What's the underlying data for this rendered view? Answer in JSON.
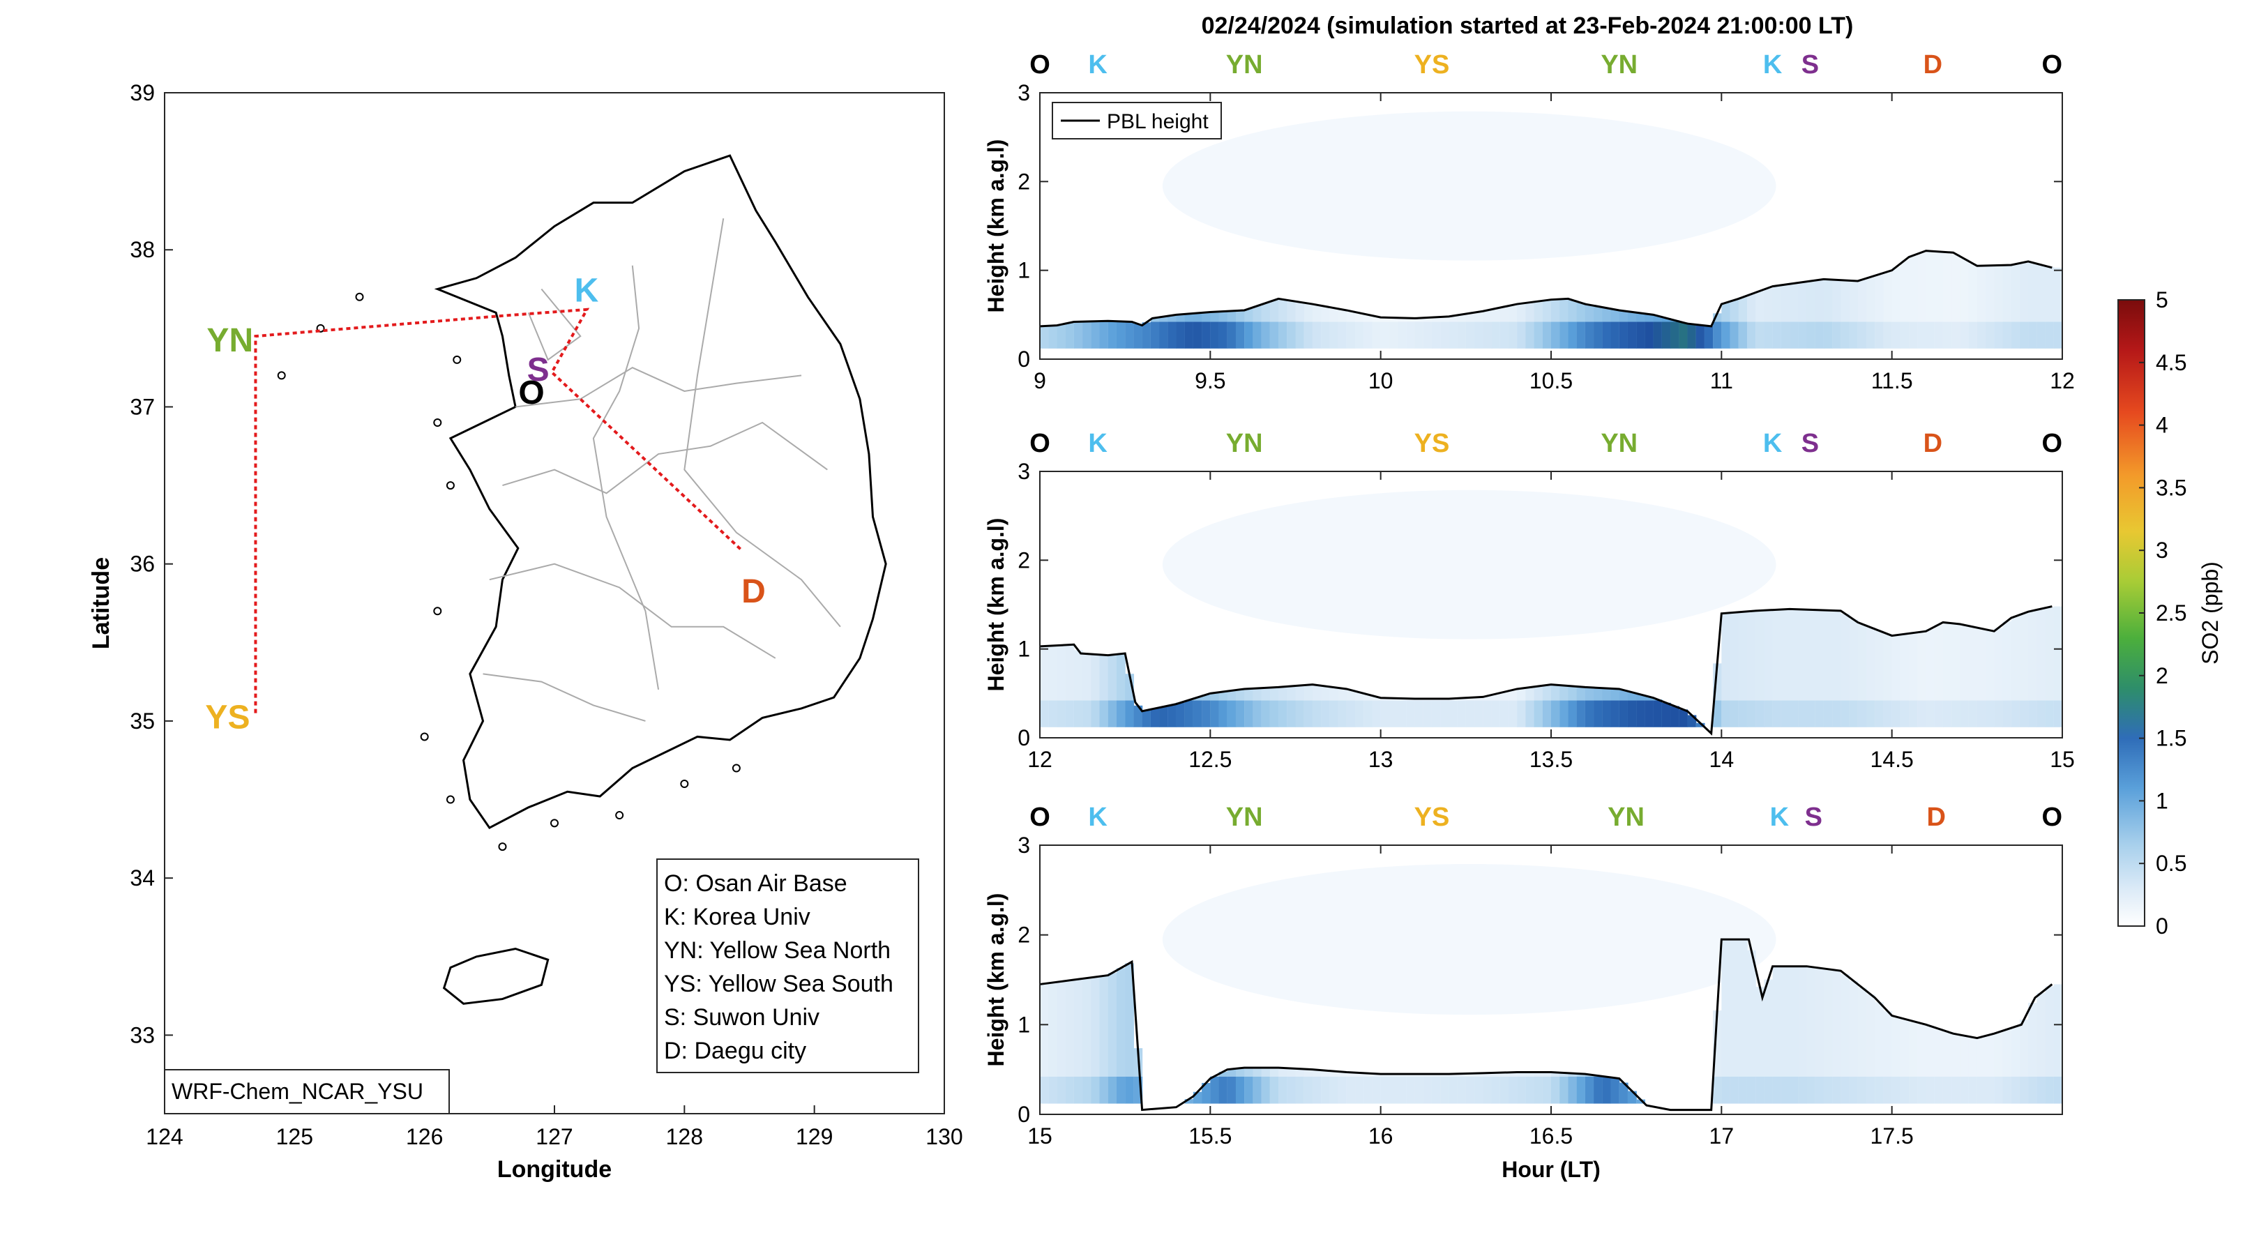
{
  "title": "02/24/2024 (simulation started at 23-Feb-2024 21:00:00 LT)",
  "colors": {
    "O": "#000000",
    "K": "#4DBEEE",
    "YN": "#77AC30",
    "YS": "#EDB120",
    "S": "#7E2F8E",
    "D": "#D95319",
    "route": "#E31A1C",
    "cmap": [
      "#ffffff",
      "#dbeaf7",
      "#9fcbe9",
      "#3a84c8",
      "#1f5fae",
      "#3aa05a",
      "#8cc83c",
      "#e8c832",
      "#f39a2a",
      "#e64a1f",
      "#b11818",
      "#7a0c0c"
    ]
  },
  "map": {
    "xlabel": "Longitude",
    "ylabel": "Latitude",
    "xticks": [
      "124",
      "125",
      "126",
      "127",
      "128",
      "129",
      "130"
    ],
    "yticks": [
      "39",
      "38",
      "37",
      "36",
      "35",
      "34",
      "33"
    ],
    "xlim": [
      124,
      130
    ],
    "ylim": [
      32.5,
      39
    ],
    "model_label": "WRF-Chem_NCAR_YSU",
    "legend": [
      "O: Osan Air Base",
      "K: Korea Univ",
      "YN: Yellow Sea North",
      "YS: Yellow Sea South",
      "S: Suwon Univ",
      "D: Daegu city"
    ],
    "sites": [
      {
        "code": "O",
        "lon": 126.83,
        "lat": 37.1
      },
      {
        "code": "K",
        "lon": 127.1,
        "lat": 37.59
      },
      {
        "code": "YN",
        "lon": 124.7,
        "lat": 37.45
      },
      {
        "code": "YS",
        "lon": 124.7,
        "lat": 35.05
      },
      {
        "code": "S",
        "lon": 126.95,
        "lat": 37.3
      },
      {
        "code": "D",
        "lon": 128.6,
        "lat": 35.87
      }
    ],
    "route": [
      [
        124.7,
        35.05
      ],
      [
        124.7,
        37.45
      ],
      [
        126.6,
        37.58
      ],
      [
        127.25,
        37.62
      ],
      [
        126.98,
        37.22
      ],
      [
        128.45,
        36.08
      ]
    ]
  },
  "chart_data": [
    {
      "type": "heatmap",
      "xlim": [
        9,
        12
      ],
      "ylim": [
        0,
        3
      ],
      "xticks": [
        "9",
        "9.5",
        "10",
        "10.5",
        "11",
        "11.5",
        "12"
      ],
      "yticks": [
        "0",
        "1",
        "2",
        "3"
      ],
      "ylabel": "Height (km a.g.l)",
      "legend": "PBL height",
      "top_labels": [
        {
          "t": "O",
          "x": 9.0
        },
        {
          "t": "K",
          "x": 9.17
        },
        {
          "t": "YN",
          "x": 9.6
        },
        {
          "t": "YS",
          "x": 10.15
        },
        {
          "t": "YN",
          "x": 10.7
        },
        {
          "t": "K",
          "x": 11.15
        },
        {
          "t": "S",
          "x": 11.26
        },
        {
          "t": "D",
          "x": 11.62
        },
        {
          "t": "O",
          "x": 11.97
        }
      ],
      "pbl": [
        [
          9.0,
          0.37
        ],
        [
          9.05,
          0.38
        ],
        [
          9.1,
          0.42
        ],
        [
          9.2,
          0.43
        ],
        [
          9.27,
          0.42
        ],
        [
          9.3,
          0.38
        ],
        [
          9.33,
          0.46
        ],
        [
          9.4,
          0.5
        ],
        [
          9.5,
          0.53
        ],
        [
          9.6,
          0.55
        ],
        [
          9.7,
          0.68
        ],
        [
          9.8,
          0.62
        ],
        [
          9.9,
          0.55
        ],
        [
          10.0,
          0.47
        ],
        [
          10.1,
          0.46
        ],
        [
          10.2,
          0.48
        ],
        [
          10.3,
          0.54
        ],
        [
          10.4,
          0.62
        ],
        [
          10.5,
          0.67
        ],
        [
          10.55,
          0.68
        ],
        [
          10.6,
          0.62
        ],
        [
          10.7,
          0.55
        ],
        [
          10.8,
          0.5
        ],
        [
          10.9,
          0.4
        ],
        [
          10.97,
          0.37
        ],
        [
          11.0,
          0.62
        ],
        [
          11.05,
          0.68
        ],
        [
          11.15,
          0.82
        ],
        [
          11.3,
          0.9
        ],
        [
          11.4,
          0.88
        ],
        [
          11.5,
          1.0
        ],
        [
          11.55,
          1.15
        ],
        [
          11.6,
          1.22
        ],
        [
          11.68,
          1.2
        ],
        [
          11.75,
          1.05
        ],
        [
          11.85,
          1.06
        ],
        [
          11.9,
          1.1
        ],
        [
          11.97,
          1.03
        ]
      ],
      "conc": [
        [
          9.0,
          0.6
        ],
        [
          9.1,
          0.8
        ],
        [
          9.22,
          1.2
        ],
        [
          9.35,
          1.5
        ],
        [
          9.45,
          1.9
        ],
        [
          9.55,
          1.6
        ],
        [
          9.65,
          1.0
        ],
        [
          9.8,
          0.4
        ],
        [
          10.0,
          0.2
        ],
        [
          10.2,
          0.3
        ],
        [
          10.4,
          0.4
        ],
        [
          10.6,
          1.4
        ],
        [
          10.75,
          1.9
        ],
        [
          10.9,
          2.3
        ],
        [
          10.98,
          1.4
        ],
        [
          11.1,
          0.5
        ],
        [
          11.3,
          0.6
        ],
        [
          11.5,
          0.3
        ],
        [
          11.7,
          0.25
        ],
        [
          11.9,
          0.5
        ]
      ]
    },
    {
      "type": "heatmap",
      "xlim": [
        12,
        15
      ],
      "ylim": [
        0,
        3
      ],
      "xticks": [
        "12",
        "12.5",
        "13",
        "13.5",
        "14",
        "14.5",
        "15"
      ],
      "yticks": [
        "0",
        "1",
        "2",
        "3"
      ],
      "ylabel": "Height (km a.g.l)",
      "top_labels": [
        {
          "t": "O",
          "x": 12.0
        },
        {
          "t": "K",
          "x": 12.17
        },
        {
          "t": "YN",
          "x": 12.6
        },
        {
          "t": "YS",
          "x": 13.15
        },
        {
          "t": "YN",
          "x": 13.7
        },
        {
          "t": "K",
          "x": 14.15
        },
        {
          "t": "S",
          "x": 14.26
        },
        {
          "t": "D",
          "x": 14.62
        },
        {
          "t": "O",
          "x": 14.97
        }
      ],
      "pbl": [
        [
          12.0,
          1.03
        ],
        [
          12.1,
          1.05
        ],
        [
          12.12,
          0.95
        ],
        [
          12.2,
          0.93
        ],
        [
          12.25,
          0.95
        ],
        [
          12.28,
          0.4
        ],
        [
          12.3,
          0.3
        ],
        [
          12.4,
          0.38
        ],
        [
          12.5,
          0.5
        ],
        [
          12.6,
          0.55
        ],
        [
          12.7,
          0.57
        ],
        [
          12.8,
          0.6
        ],
        [
          12.9,
          0.55
        ],
        [
          13.0,
          0.45
        ],
        [
          13.1,
          0.44
        ],
        [
          13.2,
          0.44
        ],
        [
          13.3,
          0.46
        ],
        [
          13.4,
          0.55
        ],
        [
          13.5,
          0.6
        ],
        [
          13.6,
          0.57
        ],
        [
          13.7,
          0.55
        ],
        [
          13.8,
          0.45
        ],
        [
          13.9,
          0.3
        ],
        [
          13.97,
          0.05
        ],
        [
          14.0,
          1.4
        ],
        [
          14.1,
          1.43
        ],
        [
          14.2,
          1.45
        ],
        [
          14.35,
          1.43
        ],
        [
          14.4,
          1.3
        ],
        [
          14.5,
          1.15
        ],
        [
          14.6,
          1.2
        ],
        [
          14.65,
          1.3
        ],
        [
          14.7,
          1.28
        ],
        [
          14.8,
          1.2
        ],
        [
          14.85,
          1.35
        ],
        [
          14.9,
          1.42
        ],
        [
          14.97,
          1.48
        ]
      ],
      "conc": [
        [
          12.0,
          0.4
        ],
        [
          12.15,
          0.5
        ],
        [
          12.25,
          1.2
        ],
        [
          12.35,
          1.7
        ],
        [
          12.5,
          1.4
        ],
        [
          12.65,
          0.8
        ],
        [
          12.8,
          0.5
        ],
        [
          13.0,
          0.3
        ],
        [
          13.2,
          0.3
        ],
        [
          13.4,
          0.3
        ],
        [
          13.6,
          1.5
        ],
        [
          13.75,
          1.9
        ],
        [
          13.9,
          2.0
        ],
        [
          14.0,
          0.6
        ],
        [
          14.15,
          0.5
        ],
        [
          14.35,
          0.5
        ],
        [
          14.6,
          0.3
        ],
        [
          14.8,
          0.35
        ],
        [
          14.97,
          0.45
        ]
      ]
    },
    {
      "type": "heatmap",
      "xlim": [
        15,
        18
      ],
      "ylim": [
        0,
        3
      ],
      "xticks": [
        "15",
        "15.5",
        "16",
        "16.5",
        "17",
        "17.5"
      ],
      "yticks": [
        "0",
        "1",
        "2",
        "3"
      ],
      "ylabel": "Height (km a.g.l)",
      "xlabel": "Hour (LT)",
      "top_labels": [
        {
          "t": "O",
          "x": 15.0
        },
        {
          "t": "K",
          "x": 15.17
        },
        {
          "t": "YN",
          "x": 15.6
        },
        {
          "t": "YS",
          "x": 16.15
        },
        {
          "t": "YN",
          "x": 16.72
        },
        {
          "t": "K",
          "x": 17.17
        },
        {
          "t": "S",
          "x": 17.27
        },
        {
          "t": "D",
          "x": 17.63
        },
        {
          "t": "O",
          "x": 17.97
        }
      ],
      "pbl": [
        [
          15.0,
          1.45
        ],
        [
          15.1,
          1.5
        ],
        [
          15.2,
          1.55
        ],
        [
          15.27,
          1.7
        ],
        [
          15.3,
          0.05
        ],
        [
          15.4,
          0.08
        ],
        [
          15.45,
          0.2
        ],
        [
          15.5,
          0.4
        ],
        [
          15.55,
          0.5
        ],
        [
          15.6,
          0.52
        ],
        [
          15.7,
          0.52
        ],
        [
          15.8,
          0.5
        ],
        [
          15.9,
          0.47
        ],
        [
          16.0,
          0.45
        ],
        [
          16.1,
          0.45
        ],
        [
          16.2,
          0.45
        ],
        [
          16.3,
          0.46
        ],
        [
          16.4,
          0.47
        ],
        [
          16.5,
          0.47
        ],
        [
          16.6,
          0.45
        ],
        [
          16.7,
          0.4
        ],
        [
          16.78,
          0.1
        ],
        [
          16.85,
          0.05
        ],
        [
          16.97,
          0.05
        ],
        [
          17.0,
          1.95
        ],
        [
          17.08,
          1.95
        ],
        [
          17.12,
          1.3
        ],
        [
          17.15,
          1.65
        ],
        [
          17.25,
          1.65
        ],
        [
          17.35,
          1.6
        ],
        [
          17.45,
          1.3
        ],
        [
          17.5,
          1.1
        ],
        [
          17.6,
          1.0
        ],
        [
          17.68,
          0.9
        ],
        [
          17.75,
          0.85
        ],
        [
          17.8,
          0.9
        ],
        [
          17.88,
          1.0
        ],
        [
          17.92,
          1.3
        ],
        [
          17.97,
          1.45
        ]
      ],
      "conc": [
        [
          15.0,
          0.4
        ],
        [
          15.15,
          0.6
        ],
        [
          15.25,
          1.2
        ],
        [
          15.4,
          0.9
        ],
        [
          15.55,
          1.5
        ],
        [
          15.7,
          0.5
        ],
        [
          15.9,
          0.3
        ],
        [
          16.1,
          0.3
        ],
        [
          16.3,
          0.35
        ],
        [
          16.5,
          0.5
        ],
        [
          16.65,
          1.6
        ],
        [
          16.75,
          1.2
        ],
        [
          16.9,
          0.3
        ],
        [
          17.0,
          0.5
        ],
        [
          17.2,
          0.5
        ],
        [
          17.4,
          0.4
        ],
        [
          17.6,
          0.3
        ],
        [
          17.8,
          0.3
        ],
        [
          17.97,
          0.5
        ]
      ]
    }
  ],
  "colorbar": {
    "label": "SO2 (ppb)",
    "ticks": [
      "0",
      "0.5",
      "1",
      "1.5",
      "2",
      "2.5",
      "3",
      "3.5",
      "4",
      "4.5",
      "5"
    ],
    "range": [
      0,
      5
    ]
  }
}
